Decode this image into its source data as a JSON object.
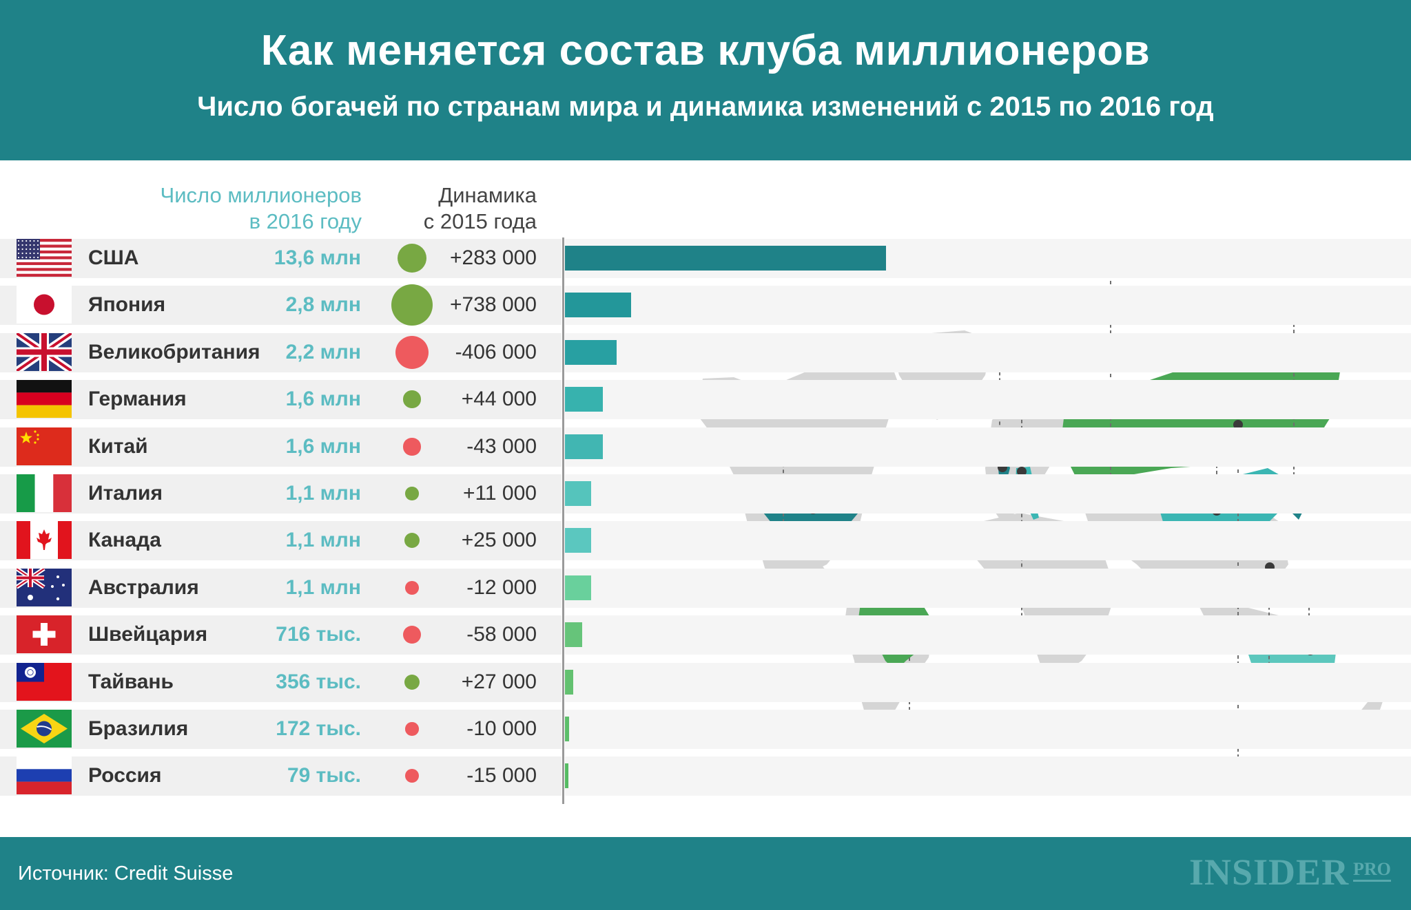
{
  "header": {
    "title": "Как меняется состав клуба миллионеров",
    "subtitle": "Число богачей по странам мира и динамика изменений с 2015 по 2016 год"
  },
  "columns": {
    "count_line1": "Число миллионеров",
    "count_line2": "в 2016 году",
    "change_line1": "Динамика",
    "change_line2": "с 2015 года"
  },
  "colors": {
    "header_bg": "#1f8288",
    "count_text": "#5cbcc2",
    "dot_positive": "#78a843",
    "dot_negative": "#ee5a5e",
    "map_land": "#d5d5d5",
    "map_highlight_green": "#4aa755",
    "map_highlight_teal": "#3bb6b3"
  },
  "chart_data": {
    "type": "bar",
    "title": "Как меняется состав клуба миллионеров",
    "subtitle": "Число богачей по странам мира и динамика изменений с 2015 по 2016 год",
    "categories": [
      "США",
      "Япония",
      "Великобритания",
      "Германия",
      "Китай",
      "Италия",
      "Канада",
      "Австралия",
      "Швейцария",
      "Тайвань",
      "Бразилия",
      "Россия"
    ],
    "count_labels": [
      "13,6 млн",
      "2,8 млн",
      "2,2 млн",
      "1,6 млн",
      "1,6 млн",
      "1,1 млн",
      "1,1 млн",
      "1,1 млн",
      "716 тыс.",
      "356 тыс.",
      "172 тыс.",
      "79 тыс."
    ],
    "values": [
      13.6,
      2.8,
      2.2,
      1.6,
      1.6,
      1.1,
      1.1,
      1.1,
      0.716,
      0.356,
      0.172,
      0.079
    ],
    "change_labels": [
      "+283 000",
      "+738 000",
      "-406 000",
      "+44 000",
      "-43 000",
      "+11 000",
      "+25 000",
      "-12 000",
      "-58 000",
      "+27 000",
      "-10 000",
      "-15 000"
    ],
    "changes": [
      283000,
      738000,
      -406000,
      44000,
      -43000,
      11000,
      25000,
      -12000,
      -58000,
      27000,
      -10000,
      -15000
    ],
    "bar_colors": [
      "#1f8288",
      "#23979a",
      "#28a0a2",
      "#37b2ae",
      "#41b6b2",
      "#55c4bc",
      "#5bc7bf",
      "#69d09c",
      "#66c47a",
      "#63c170",
      "#5cbe6a",
      "#55bb63"
    ],
    "flags": [
      "flag-usa-icon",
      "flag-japan-icon",
      "flag-uk-icon",
      "flag-germany-icon",
      "flag-china-icon",
      "flag-italy-icon",
      "flag-canada-icon",
      "flag-australia-icon",
      "flag-switzerland-icon",
      "flag-taiwan-icon",
      "flag-brazil-icon",
      "flag-russia-icon"
    ]
  },
  "footer": {
    "source": "Источник: Credit Suisse",
    "logo": "INSIDER",
    "logo_suffix": "PRO"
  }
}
